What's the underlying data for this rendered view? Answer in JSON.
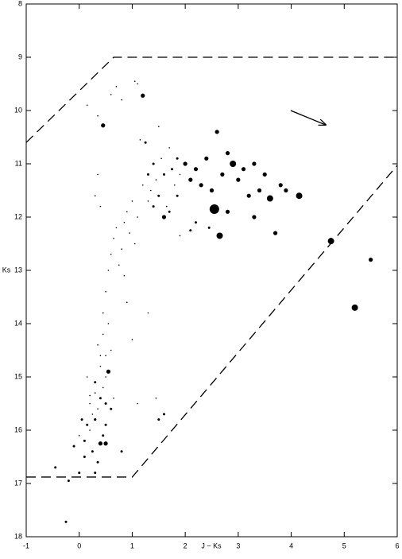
{
  "chart_data": {
    "type": "scatter",
    "x_label": "J − Ks",
    "y_label": "Ks",
    "color": "#000000",
    "xlim": [
      -1,
      6
    ],
    "ylim": [
      18,
      8
    ],
    "xticks": [
      -1,
      0,
      1,
      2,
      3,
      4,
      5,
      6
    ],
    "yticks": [
      8,
      9,
      10,
      11,
      12,
      13,
      14,
      15,
      16,
      17,
      18
    ],
    "x": [
      0.1,
      0.2,
      0.3,
      0.35,
      0.4,
      0.45,
      0.5,
      0.25,
      0.15,
      0.3,
      0.4,
      0.5,
      0.35,
      0.45,
      0.55,
      0.3,
      0.2,
      0.1,
      0.0,
      -0.1,
      0.6,
      0.5,
      0.45,
      0.4,
      0.35,
      0.3,
      0.25,
      0.2,
      0.15,
      0.05,
      0.45,
      0.5,
      0.55,
      0.6,
      0.65,
      0.7,
      0.75,
      0.8,
      0.85,
      0.9,
      0.95,
      1.0,
      1.05,
      1.1,
      0.3,
      0.35,
      0.4,
      0.85,
      0.9,
      1.0,
      1.2,
      1.3,
      1.35,
      1.4,
      1.45,
      1.5,
      1.55,
      1.6,
      1.65,
      1.7,
      1.75,
      1.8,
      1.85,
      1.9,
      1.25,
      1.3,
      1.5,
      1.6,
      1.7,
      1.4,
      2.0,
      2.1,
      2.2,
      2.3,
      2.4,
      2.5,
      2.55,
      2.6,
      2.7,
      2.8,
      2.9,
      3.0,
      3.1,
      3.2,
      3.3,
      3.4,
      3.5,
      3.6,
      3.8,
      3.9,
      2.65,
      3.7,
      4.15,
      4.75,
      5.5,
      5.2,
      0.45,
      1.2,
      2.8,
      3.3,
      -0.45,
      -0.2,
      -0.25,
      0.5,
      0.8,
      1.1,
      1.5,
      1.6,
      1.45,
      1.9,
      0.15,
      0.35,
      0.6,
      0.7,
      0.8,
      1.05,
      1.1,
      1.15,
      2.1,
      2.2,
      0.3,
      0.5,
      0.0,
      0.55,
      0.6,
      0.4,
      0.65,
      1.3,
      1.85,
      2.45
    ],
    "values": [
      16.2,
      16.0,
      15.8,
      15.6,
      15.4,
      15.2,
      15.0,
      16.4,
      15.9,
      15.3,
      14.8,
      14.6,
      14.4,
      14.2,
      14.0,
      15.1,
      15.5,
      16.5,
      16.1,
      16.3,
      15.6,
      15.9,
      16.1,
      16.25,
      16.6,
      16.8,
      15.7,
      15.35,
      15.0,
      15.8,
      13.8,
      13.4,
      13.0,
      12.7,
      12.4,
      12.2,
      12.9,
      12.6,
      12.1,
      11.9,
      12.3,
      11.7,
      12.5,
      12.0,
      11.6,
      11.2,
      11.8,
      13.1,
      13.6,
      14.3,
      11.4,
      11.2,
      11.5,
      11.0,
      11.3,
      11.6,
      10.9,
      11.2,
      11.8,
      10.7,
      11.1,
      11.4,
      10.9,
      11.2,
      10.6,
      11.7,
      10.3,
      12.0,
      11.9,
      11.8,
      11.0,
      11.3,
      11.1,
      11.4,
      10.9,
      11.5,
      11.85,
      10.4,
      11.2,
      10.8,
      11.0,
      11.3,
      11.1,
      11.6,
      11.0,
      11.5,
      11.2,
      11.65,
      11.4,
      11.5,
      12.35,
      12.3,
      11.6,
      12.45,
      12.8,
      13.7,
      10.28,
      9.72,
      11.9,
      12.0,
      16.7,
      16.95,
      17.72,
      16.25,
      16.4,
      15.5,
      15.8,
      15.7,
      15.4,
      12.35,
      9.9,
      10.1,
      9.7,
      9.55,
      9.8,
      9.45,
      9.5,
      10.55,
      12.25,
      12.1,
      15.8,
      15.5,
      16.8,
      14.9,
      14.5,
      14.6,
      15.4,
      13.8,
      11.6,
      12.2
    ],
    "sizes": [
      2,
      1,
      2,
      1,
      2,
      1,
      1,
      2,
      2,
      1,
      1,
      1,
      1,
      1,
      1,
      2,
      1,
      2,
      1,
      2,
      2,
      2,
      2,
      3,
      2,
      2,
      1,
      1,
      1,
      2,
      1,
      1,
      1,
      1,
      1,
      1,
      1,
      1,
      1,
      1,
      1,
      1,
      1,
      1,
      1,
      1,
      1,
      1,
      1,
      1,
      1,
      2,
      1,
      2,
      1,
      2,
      1,
      2,
      1,
      1,
      2,
      1,
      2,
      1,
      2,
      1,
      1,
      3,
      2,
      2,
      3,
      3,
      3,
      3,
      3,
      3,
      5,
      3,
      3,
      3,
      4,
      3,
      3,
      3,
      3,
      3,
      3,
      4,
      3,
      3,
      4,
      3,
      4,
      4,
      3,
      4,
      3,
      3,
      3,
      3,
      2,
      2,
      2,
      3,
      2,
      1,
      2,
      2,
      1,
      1,
      1,
      1,
      1,
      1,
      1,
      1,
      1,
      1,
      2,
      2,
      2,
      2,
      2,
      3,
      1,
      1,
      1,
      1,
      2,
      2
    ],
    "lines": [
      {
        "x": [
          -1,
          0.65,
          6
        ],
        "y": [
          10.6,
          9.0,
          9.0
        ]
      },
      {
        "x": [
          -1,
          1.0,
          6
        ],
        "y": [
          16.88,
          16.88,
          11.03
        ]
      }
    ],
    "arrow": {
      "x": [
        3.99,
        4.65
      ],
      "y": [
        10.0,
        10.27
      ]
    }
  }
}
